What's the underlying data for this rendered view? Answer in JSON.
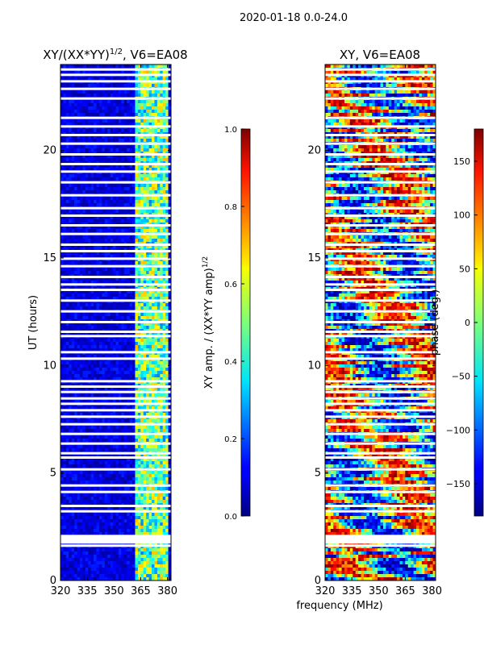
{
  "figure": {
    "suptitle": "2020-01-18 0.0-24.0"
  },
  "chart_data": [
    {
      "type": "heatmap",
      "title": "XY/(XX*YY)^1/2, V6=EA08",
      "title_main": "XY/(XX*YY)",
      "title_exp": "1/2",
      "title_tail": ", V6=EA08",
      "xlabel": "",
      "ylabel": "UT (hours)",
      "xlim": [
        320,
        382
      ],
      "ylim": [
        0,
        24
      ],
      "xticks": [
        320,
        335,
        350,
        365,
        380
      ],
      "yticks": [
        0,
        5,
        10,
        15,
        20
      ],
      "bright_band_mhz": [
        362,
        380
      ],
      "colorbar": {
        "label_main": "XY amp. / (XX*YY amp)",
        "label_exp": "1/2",
        "range": [
          0.0,
          1.0
        ],
        "ticks": [
          "0.0",
          "0.2",
          "0.4",
          "0.6",
          "0.8",
          "1.0"
        ],
        "colormap": "jet"
      }
    },
    {
      "type": "heatmap",
      "title": "XY, V6=EA08",
      "xlabel": "frequency (MHz)",
      "ylabel": "",
      "xlim": [
        320,
        382
      ],
      "ylim": [
        0,
        24
      ],
      "xticks": [
        320,
        335,
        350,
        365,
        380
      ],
      "yticks": [
        0,
        5,
        10,
        15,
        20
      ],
      "colorbar": {
        "label": "phase (deg.)",
        "range": [
          -180,
          180
        ],
        "ticks": [
          "150",
          "100",
          "50",
          "0",
          "−50",
          "−100",
          "−150"
        ],
        "tick_values": [
          150,
          100,
          50,
          0,
          -50,
          -100,
          -150
        ],
        "colormap": "jet"
      }
    }
  ],
  "flagged_rows_ut": [
    1.6,
    1.75,
    1.9,
    2.05,
    3.2,
    3.45,
    4.1,
    4.4,
    5.15,
    5.7,
    5.9,
    6.35,
    6.8,
    7.25,
    7.6,
    7.9,
    8.2,
    8.45,
    8.75,
    9.0,
    9.25,
    10.3,
    10.6,
    11.35,
    11.55,
    12.0,
    12.5,
    13.0,
    13.5,
    13.75,
    14.1,
    14.6,
    14.95,
    15.3,
    15.6,
    16.1,
    16.5,
    16.95,
    17.3,
    17.9,
    18.5,
    19.0,
    19.35,
    19.8,
    20.3,
    20.7,
    21.1,
    21.5,
    22.4,
    22.85,
    23.2,
    23.5,
    23.75
  ]
}
